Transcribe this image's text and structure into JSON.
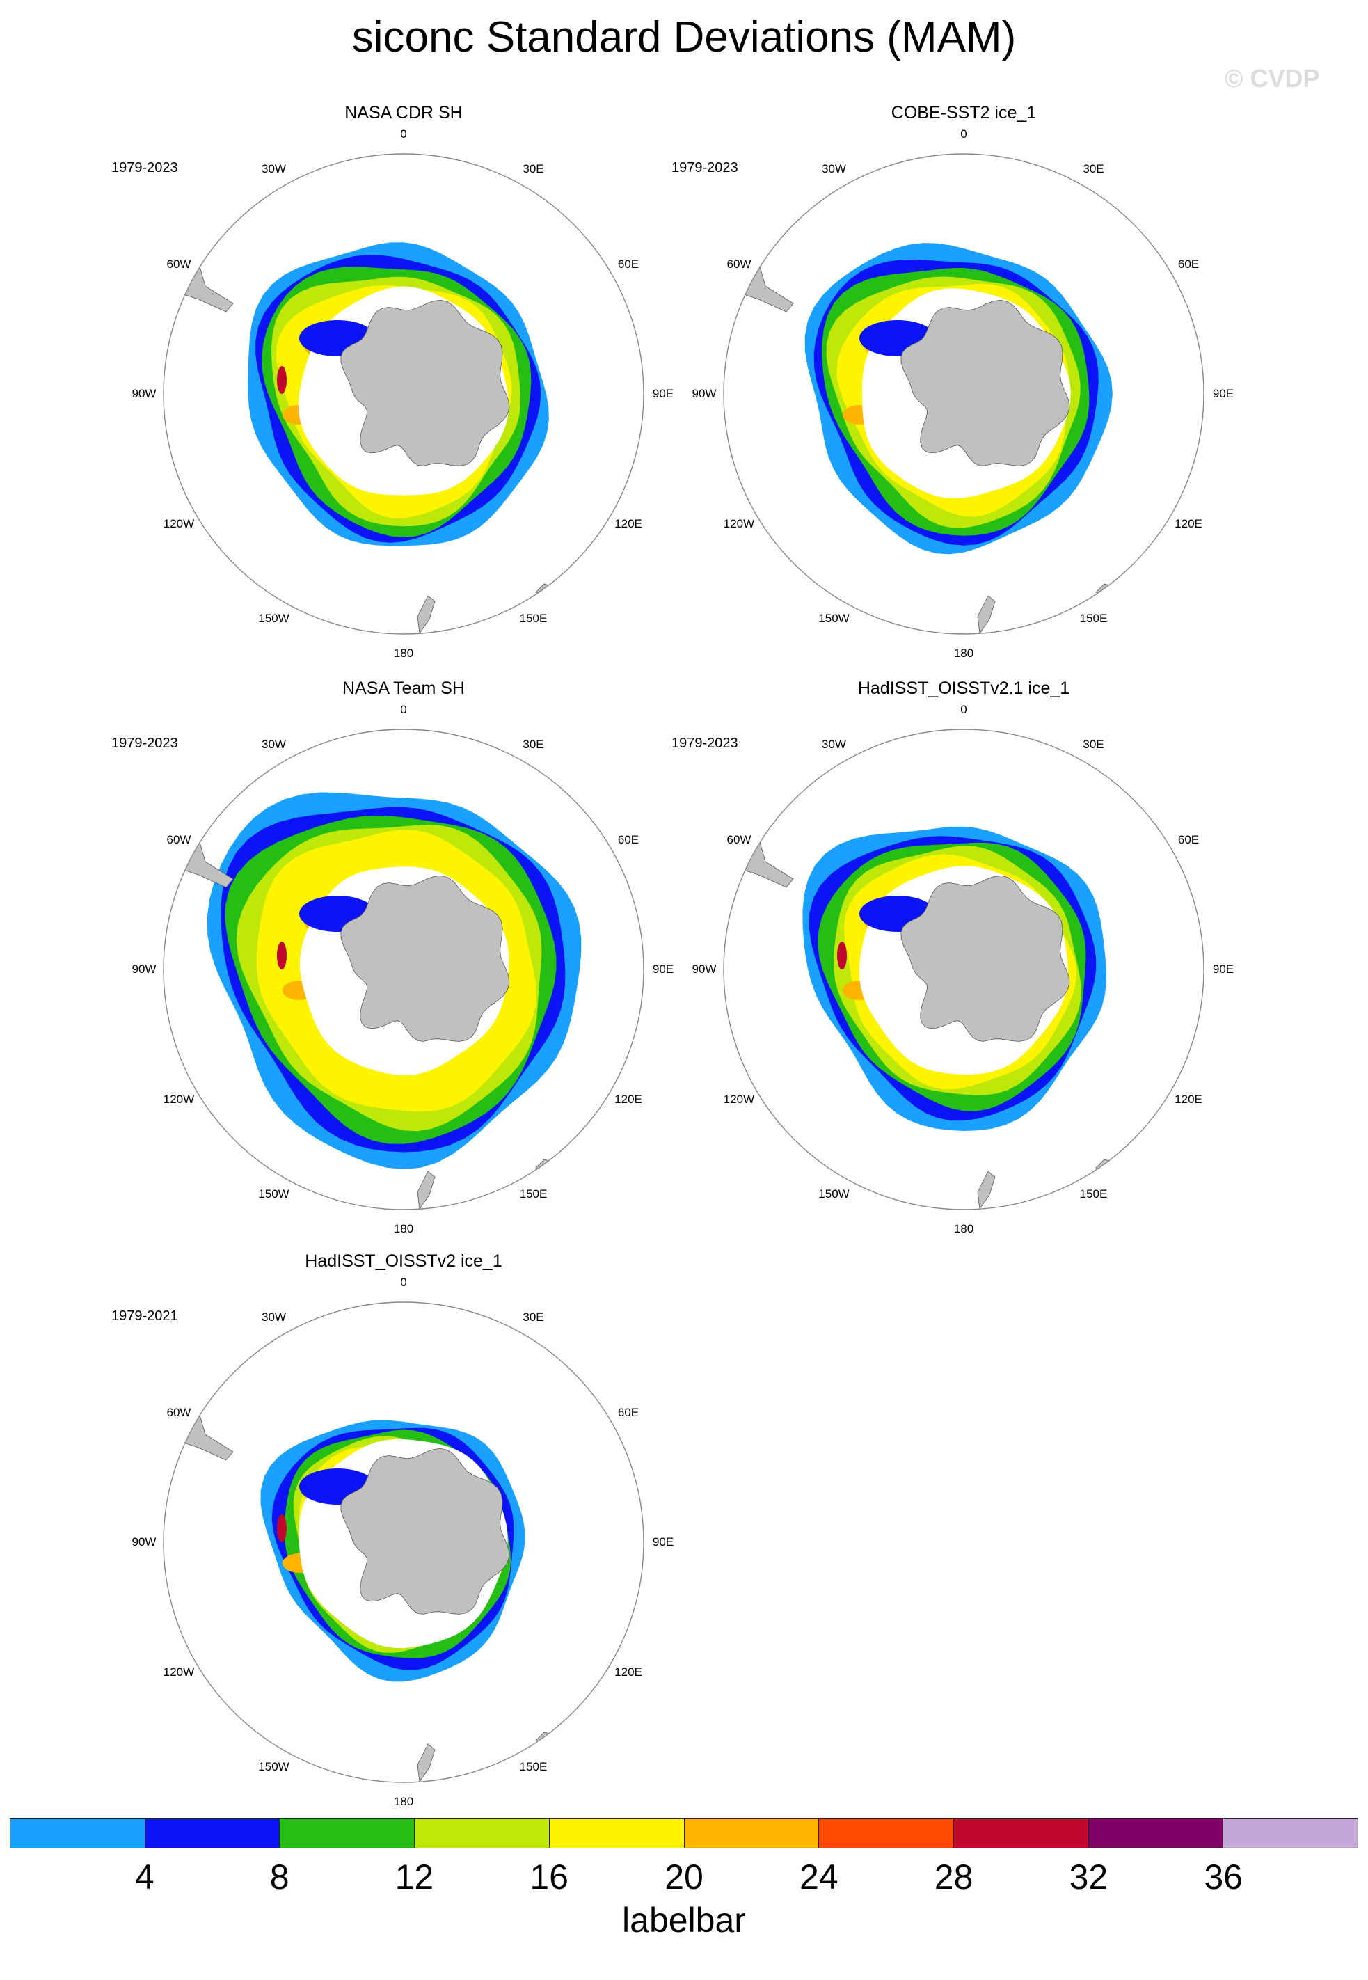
{
  "figure": {
    "title": "siconc Standard Deviations (MAM)",
    "watermark": "© CVDP"
  },
  "lon_labels": [
    "0",
    "30E",
    "60E",
    "90E",
    "120E",
    "150E",
    "180",
    "150W",
    "120W",
    "90W",
    "60W",
    "30W"
  ],
  "colors": {
    "land": "#c0c0c0",
    "ocean": "#ffffff",
    "grid": "#888888",
    "scale": [
      "#1aa1ff",
      "#0a14f5",
      "#25be15",
      "#bde80a",
      "#fdf400",
      "#ffb400",
      "#ff4a00",
      "#c0082e",
      "#800066",
      "#c5a6da"
    ]
  },
  "panels": [
    {
      "title": "NASA CDR SH",
      "years": "1979-2023"
    },
    {
      "title": "COBE-SST2 ice_1",
      "years": "1979-2023"
    },
    {
      "title": "NASA Team SH",
      "years": "1979-2023"
    },
    {
      "title": "HadISST_OISSTv2.1 ice_1",
      "years": "1979-2023"
    },
    {
      "title": "HadISST_OISSTv2 ice_1",
      "years": "1979-2021"
    }
  ],
  "labelbar": {
    "label": "labelbar",
    "ticks": [
      "4",
      "8",
      "12",
      "16",
      "20",
      "24",
      "28",
      "32",
      "36"
    ]
  }
}
